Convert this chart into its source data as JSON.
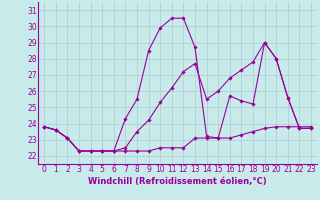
{
  "background_color": "#c8eaea",
  "line_color": "#990099",
  "grid_color": "#aacccc",
  "xlabel": "Windchill (Refroidissement éolien,°C)",
  "xlabel_fontsize": 6.0,
  "ylim": [
    21.5,
    31.5
  ],
  "xlim": [
    -0.5,
    23.5
  ],
  "series1_x": [
    0,
    1,
    2,
    3,
    4,
    5,
    6,
    7,
    8,
    9,
    10,
    11,
    12,
    13,
    14,
    15,
    16,
    17,
    18,
    19,
    20,
    21,
    22,
    23
  ],
  "series1_y": [
    23.8,
    23.6,
    23.1,
    22.3,
    22.3,
    22.3,
    22.3,
    24.3,
    25.5,
    28.5,
    29.9,
    30.5,
    30.5,
    28.7,
    23.2,
    23.1,
    25.7,
    25.4,
    25.2,
    29.0,
    28.0,
    25.6,
    23.7,
    23.7
  ],
  "series2_x": [
    0,
    1,
    2,
    3,
    4,
    5,
    6,
    7,
    8,
    9,
    10,
    11,
    12,
    13,
    14,
    15,
    16,
    17,
    18,
    19,
    20,
    21,
    22,
    23
  ],
  "series2_y": [
    23.8,
    23.6,
    23.1,
    22.3,
    22.3,
    22.3,
    22.3,
    22.3,
    22.3,
    22.3,
    22.5,
    22.5,
    22.5,
    23.1,
    23.1,
    23.1,
    23.1,
    23.3,
    23.5,
    23.7,
    23.8,
    23.8,
    23.8,
    23.8
  ],
  "series3_x": [
    0,
    1,
    2,
    3,
    4,
    5,
    6,
    7,
    8,
    9,
    10,
    11,
    12,
    13,
    14,
    15,
    16,
    17,
    18,
    19,
    20,
    21,
    22,
    23
  ],
  "series3_y": [
    23.8,
    23.6,
    23.1,
    22.3,
    22.3,
    22.3,
    22.3,
    22.5,
    23.5,
    24.2,
    25.3,
    26.2,
    27.2,
    27.7,
    25.5,
    26.0,
    26.8,
    27.3,
    27.8,
    29.0,
    28.0,
    25.6,
    23.7,
    23.7
  ],
  "tick_fontsize": 5.5,
  "marker": "D",
  "marker_size": 1.8,
  "linewidth": 0.8,
  "xtick_labels": [
    "0",
    "1",
    "2",
    "3",
    "4",
    "5",
    "6",
    "7",
    "8",
    "9",
    "10",
    "11",
    "12",
    "13",
    "14",
    "15",
    "16",
    "17",
    "18",
    "19",
    "20",
    "21",
    "22",
    "23"
  ]
}
